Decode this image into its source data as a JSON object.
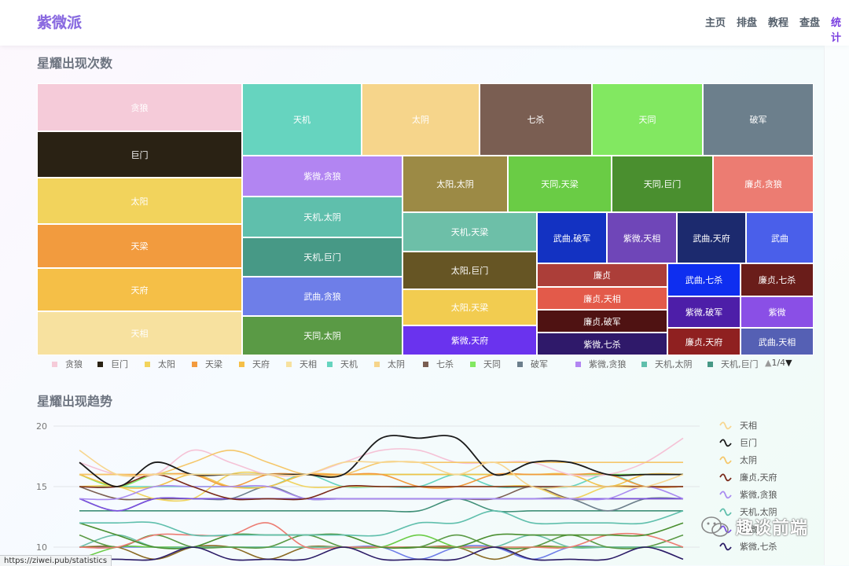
{
  "header": {
    "brand": "紫微派",
    "nav": [
      "主页",
      "排盘",
      "教程",
      "查盘",
      "统计"
    ],
    "active_nav": "统计"
  },
  "sections": {
    "treemap_title": "星耀出现次数",
    "trend_title": "星耀出现趋势"
  },
  "status_url": "https://ziwei.pub/statistics",
  "watermark": "趣谈前端",
  "chart_data": [
    {
      "type": "treemap",
      "title": "星耀出现次数",
      "items": [
        {
          "name": "贪狼",
          "color": "#f5cbd9"
        },
        {
          "name": "巨门",
          "color": "#2a2214"
        },
        {
          "name": "太阳",
          "color": "#f2d35c"
        },
        {
          "name": "天梁",
          "color": "#f29b3e"
        },
        {
          "name": "天府",
          "color": "#f5bf47"
        },
        {
          "name": "天相",
          "color": "#f7e19f"
        },
        {
          "name": "天机",
          "color": "#66d4bf"
        },
        {
          "name": "太阴",
          "color": "#f6d58b"
        },
        {
          "name": "七杀",
          "color": "#7a5e52"
        },
        {
          "name": "天同",
          "color": "#82e861"
        },
        {
          "name": "破军",
          "color": "#6c7f8c"
        },
        {
          "name": "紫微,贪狼",
          "color": "#b285f2"
        },
        {
          "name": "天机,太阴",
          "color": "#5fbfac"
        },
        {
          "name": "天机,巨门",
          "color": "#479986"
        },
        {
          "name": "武曲,贪狼",
          "color": "#6e7ee8"
        },
        {
          "name": "天同,太阴",
          "color": "#5a9a45"
        },
        {
          "name": "太阳,太阴",
          "color": "#9c8a45"
        },
        {
          "name": "天同,天梁",
          "color": "#6acc45"
        },
        {
          "name": "天同,巨门",
          "color": "#4a8f2f"
        },
        {
          "name": "廉贞,贪狼",
          "color": "#ec7c72"
        },
        {
          "name": "天机,天梁",
          "color": "#6dbfa8"
        },
        {
          "name": "太阳,巨门",
          "color": "#665524"
        },
        {
          "name": "太阳,天梁",
          "color": "#f2cc50"
        },
        {
          "name": "紫微,天府",
          "color": "#6a33ee"
        },
        {
          "name": "武曲,破军",
          "color": "#1332c2"
        },
        {
          "name": "紫微,天相",
          "color": "#6f46b8"
        },
        {
          "name": "武曲,天府",
          "color": "#1c2a6e"
        },
        {
          "name": "武曲",
          "color": "#4a5fea"
        },
        {
          "name": "廉贞",
          "color": "#ac3e39"
        },
        {
          "name": "廉贞,天相",
          "color": "#e35a4a"
        },
        {
          "name": "廉贞,破军",
          "color": "#4f1212"
        },
        {
          "name": "紫微,七杀",
          "color": "#2f196a"
        },
        {
          "name": "武曲,七杀",
          "color": "#0e2ef0"
        },
        {
          "name": "廉贞,七杀",
          "color": "#6a1d1a"
        },
        {
          "name": "紫微,破军",
          "color": "#4d1ea8"
        },
        {
          "name": "紫微",
          "color": "#8a4fe6"
        },
        {
          "name": "廉贞,天府",
          "color": "#8f2020"
        },
        {
          "name": "武曲,天相",
          "color": "#5560b4"
        }
      ],
      "legend_page": "1/4"
    },
    {
      "type": "line",
      "title": "星耀出现趋势",
      "ylim": [
        9,
        20
      ],
      "yticks": [
        20,
        15,
        10
      ],
      "series": [
        {
          "name": "天相",
          "color": "#f7d690",
          "values": [
            18,
            16,
            16,
            16,
            16,
            16,
            16,
            17,
            17,
            17,
            16,
            17,
            15,
            15,
            15,
            15,
            16
          ]
        },
        {
          "name": "巨门",
          "color": "#1a1a1a",
          "values": [
            17,
            15,
            17,
            16,
            16,
            16,
            16,
            16,
            19,
            19,
            19,
            16,
            17,
            17,
            16,
            16,
            16
          ]
        },
        {
          "name": "太阴",
          "color": "#f5c76a",
          "values": [
            16,
            16,
            16,
            17,
            18,
            17,
            16,
            16,
            17,
            17,
            17,
            17,
            17,
            17,
            17,
            17,
            17
          ]
        },
        {
          "name": "廉贞,天府",
          "color": "#7a2a1a",
          "values": [
            15,
            15,
            16,
            15,
            14,
            14,
            14,
            15,
            15,
            15,
            15,
            15,
            15,
            15,
            15,
            15,
            15
          ]
        },
        {
          "name": "紫微,贪狼",
          "color": "#a98bf0",
          "values": [
            14,
            14,
            15,
            15,
            15,
            15,
            14,
            14,
            14,
            14,
            14,
            14,
            14,
            14,
            14,
            15,
            14
          ]
        },
        {
          "name": "天机,太阴",
          "color": "#5fbfac",
          "values": [
            12,
            12,
            12,
            11,
            11,
            11,
            11,
            11,
            11,
            12,
            12,
            13,
            12,
            12,
            12,
            12,
            13
          ]
        },
        {
          "name": "紫微",
          "color": "#7a4fe0",
          "values": [
            14,
            13,
            14,
            14,
            14,
            14,
            14,
            14,
            14,
            14,
            14,
            14,
            14,
            14,
            14,
            14,
            14
          ]
        },
        {
          "name": "紫微,七杀",
          "color": "#2a1a66",
          "values": [
            9,
            9,
            9,
            10,
            9,
            9,
            9,
            10,
            9,
            9,
            9,
            10,
            9,
            9,
            9,
            10,
            9
          ]
        },
        {
          "name": "贪狼",
          "color": "#f5c2d6",
          "values": [
            17,
            16,
            16,
            18,
            17,
            16,
            16,
            17,
            18,
            18,
            17,
            17,
            17,
            16,
            16,
            17,
            19
          ]
        },
        {
          "name": "天梁",
          "color": "#f29b3e",
          "values": [
            16,
            16,
            16,
            16,
            15,
            16,
            16,
            16,
            16,
            15,
            15,
            16,
            16,
            16,
            16,
            15,
            15
          ]
        },
        {
          "name": "天府",
          "color": "#f2c24a",
          "values": [
            16,
            15,
            15,
            16,
            15,
            15,
            16,
            16,
            16,
            16,
            16,
            16,
            16,
            16,
            15,
            16,
            16
          ]
        },
        {
          "name": "太阳",
          "color": "#f0d35e",
          "values": [
            15,
            15,
            14,
            14,
            16,
            16,
            15,
            15,
            15,
            15,
            15,
            15,
            15,
            14,
            15,
            15,
            15
          ]
        },
        {
          "name": "天同",
          "color": "#82e861",
          "values": [
            16,
            15,
            16,
            16,
            16,
            16,
            16,
            16,
            16,
            16,
            16,
            16,
            16,
            16,
            16,
            16,
            16
          ]
        },
        {
          "name": "破军",
          "color": "#6c7f8c",
          "values": [
            14,
            13,
            14,
            14,
            14,
            15,
            14,
            14,
            14,
            14,
            14,
            14,
            14,
            14,
            13,
            14,
            14
          ]
        },
        {
          "name": "天机",
          "color": "#66d4bf",
          "values": [
            15,
            15,
            15,
            15,
            15,
            15,
            16,
            15,
            15,
            15,
            16,
            15,
            15,
            15,
            16,
            15,
            15
          ]
        },
        {
          "name": "七杀",
          "color": "#7a5e52",
          "values": [
            15,
            14,
            14,
            14,
            14,
            14,
            14,
            14,
            14,
            14,
            14,
            14,
            15,
            14,
            14,
            14,
            14
          ]
        },
        {
          "name": "天机,巨门",
          "color": "#3f8f77",
          "values": [
            13,
            13,
            13,
            13,
            13,
            13,
            13,
            13,
            13,
            13,
            14,
            13,
            13,
            13,
            13,
            13,
            13
          ]
        },
        {
          "name": "天同,巨门",
          "color": "#4a8f2f",
          "values": [
            12,
            11,
            10,
            10,
            11,
            11,
            11,
            11,
            10,
            10,
            10,
            11,
            11,
            11,
            11,
            11,
            12
          ]
        },
        {
          "name": "廉贞,贪狼",
          "color": "#ec7c72",
          "values": [
            10,
            10,
            11,
            11,
            11,
            12,
            10,
            10,
            10,
            10,
            10,
            10,
            10,
            10,
            11,
            11,
            10
          ]
        },
        {
          "name": "天同,太阴",
          "color": "#5a9a45",
          "values": [
            11,
            10,
            11,
            10,
            10,
            10,
            11,
            10,
            10,
            10,
            11,
            10,
            10,
            11,
            10,
            10,
            11
          ]
        },
        {
          "name": "天机,天梁",
          "color": "#6dbfa8",
          "values": [
            10,
            11,
            10,
            10,
            10,
            10,
            10,
            10,
            10,
            10,
            10,
            10,
            11,
            10,
            10,
            10,
            10
          ]
        },
        {
          "name": "天同,天梁",
          "color": "#6acc45",
          "values": [
            9,
            10,
            10,
            10,
            10,
            10,
            10,
            10,
            10,
            11,
            10,
            10,
            10,
            10,
            10,
            10,
            10
          ]
        },
        {
          "name": "太阳,巨门",
          "color": "#8a6a24",
          "values": [
            10,
            10,
            9,
            10,
            10,
            9,
            10,
            10,
            10,
            10,
            10,
            9,
            10,
            10,
            10,
            10,
            10
          ]
        },
        {
          "name": "武曲,贪狼",
          "color": "#6e7ee8",
          "values": [
            10,
            10,
            10,
            10,
            10,
            10,
            10,
            10,
            10,
            9,
            10,
            10,
            9,
            10,
            10,
            10,
            10
          ]
        }
      ],
      "legend_visible": [
        "天相",
        "巨门",
        "太阴",
        "廉贞,天府",
        "紫微,贪狼",
        "天机,太阴",
        "紫微",
        "紫微,七杀"
      ]
    }
  ]
}
